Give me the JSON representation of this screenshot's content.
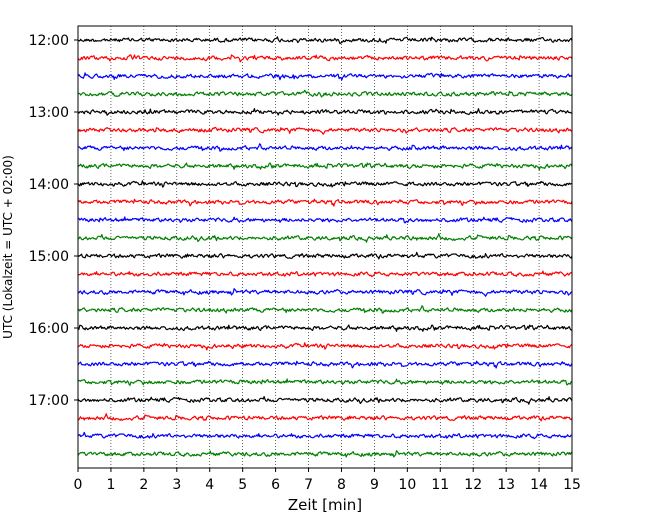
{
  "chart_data": {
    "type": "line",
    "title": "",
    "xlabel": "Zeit  [min]",
    "ylabel": "UTC (Lokalzeit = UTC + 02:00)",
    "xlim": [
      0,
      15
    ],
    "x_ticks": [
      "0",
      "1",
      "2",
      "3",
      "4",
      "5",
      "6",
      "7",
      "8",
      "9",
      "10",
      "11",
      "12",
      "13",
      "14",
      "15"
    ],
    "y_ticks": [
      "12:00",
      "13:00",
      "14:00",
      "15:00",
      "16:00",
      "17:00"
    ],
    "row_interval_minutes": 15,
    "first_row": "12:00",
    "grid": "vertical dotted",
    "trace_colors": [
      "#000000",
      "#ff0000",
      "#0000ff",
      "#008000"
    ],
    "series": [
      {
        "start": "12:00",
        "color": "#000000"
      },
      {
        "start": "12:15",
        "color": "#ff0000"
      },
      {
        "start": "12:30",
        "color": "#0000ff"
      },
      {
        "start": "12:45",
        "color": "#008000"
      },
      {
        "start": "13:00",
        "color": "#000000"
      },
      {
        "start": "13:15",
        "color": "#ff0000"
      },
      {
        "start": "13:30",
        "color": "#0000ff"
      },
      {
        "start": "13:45",
        "color": "#008000"
      },
      {
        "start": "14:00",
        "color": "#000000"
      },
      {
        "start": "14:15",
        "color": "#ff0000"
      },
      {
        "start": "14:30",
        "color": "#0000ff"
      },
      {
        "start": "14:45",
        "color": "#008000"
      },
      {
        "start": "15:00",
        "color": "#000000"
      },
      {
        "start": "15:15",
        "color": "#ff0000"
      },
      {
        "start": "15:30",
        "color": "#0000ff"
      },
      {
        "start": "15:45",
        "color": "#008000"
      },
      {
        "start": "16:00",
        "color": "#000000"
      },
      {
        "start": "16:15",
        "color": "#ff0000"
      },
      {
        "start": "16:30",
        "color": "#0000ff"
      },
      {
        "start": "16:45",
        "color": "#008000"
      },
      {
        "start": "17:00",
        "color": "#000000"
      },
      {
        "start": "17:15",
        "color": "#ff0000"
      },
      {
        "start": "17:30",
        "color": "#0000ff"
      },
      {
        "start": "17:45",
        "color": "#008000"
      }
    ]
  }
}
